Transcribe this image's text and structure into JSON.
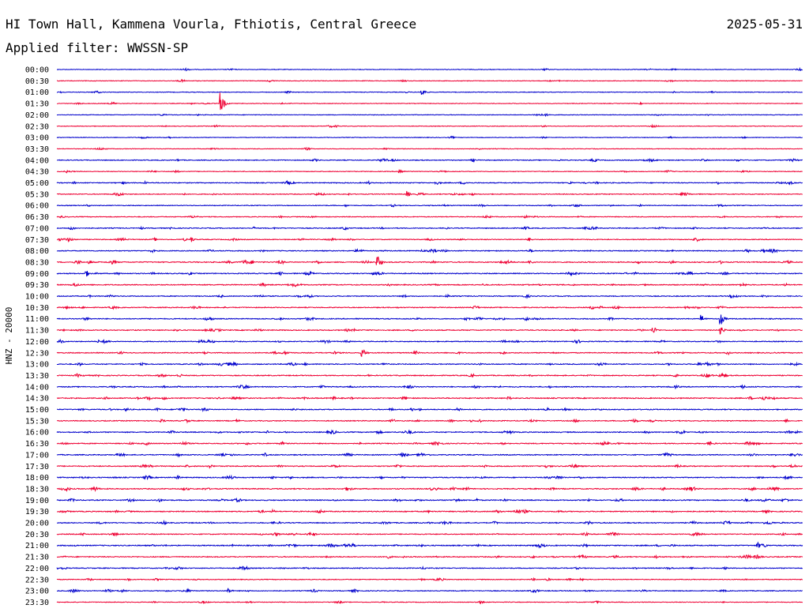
{
  "chart_data": {
    "type": "line",
    "title": "HI Town Hall, Kammena Vourla, Fthiotis, Central Greece",
    "date": "2025-05-31",
    "subtitle": "Applied filter: WWSSN-SP",
    "ylabel": "HNZ - 20000",
    "row_labels": [
      "00:00",
      "00:30",
      "01:00",
      "01:30",
      "02:00",
      "02:30",
      "03:00",
      "03:30",
      "04:00",
      "04:30",
      "05:00",
      "05:30",
      "06:00",
      "06:30",
      "07:00",
      "07:30",
      "08:00",
      "08:30",
      "09:00",
      "09:30",
      "10:00",
      "10:30",
      "11:00",
      "11:30",
      "12:00",
      "12:30",
      "13:00",
      "13:30",
      "14:00",
      "14:30",
      "15:00",
      "15:30",
      "16:00",
      "16:30",
      "17:00",
      "17:30",
      "18:00",
      "18:30",
      "19:00",
      "19:30",
      "20:00",
      "20:30",
      "21:00",
      "21:30",
      "22:00",
      "22:30",
      "23:00",
      "23:30"
    ],
    "colors": [
      "#0000cc",
      "#ee0033"
    ],
    "noise_level": [
      0.3,
      0.3,
      0.3,
      0.3,
      0.3,
      0.3,
      0.3,
      0.3,
      0.6,
      0.4,
      0.7,
      0.6,
      0.5,
      0.5,
      0.7,
      0.6,
      0.7,
      0.9,
      0.8,
      0.8,
      0.7,
      0.7,
      0.7,
      0.8,
      0.7,
      0.7,
      0.8,
      0.8,
      0.8,
      0.9,
      0.8,
      0.7,
      0.8,
      0.8,
      0.8,
      0.8,
      0.8,
      0.9,
      0.8,
      0.9,
      0.8,
      0.7,
      0.9,
      0.8,
      0.7,
      0.5,
      0.6,
      0.4
    ],
    "events": [
      {
        "row": 3,
        "t": 0.22,
        "amp": 14
      },
      {
        "row": 2,
        "t": 0.49,
        "amp": 5
      },
      {
        "row": 17,
        "t": 0.43,
        "amp": 9
      },
      {
        "row": 22,
        "t": 0.89,
        "amp": 8
      },
      {
        "row": 22,
        "t": 0.865,
        "amp": 5
      },
      {
        "row": 23,
        "t": 0.89,
        "amp": 6
      },
      {
        "row": 23,
        "t": 0.8,
        "amp": 5
      },
      {
        "row": 25,
        "t": 0.41,
        "amp": 6
      },
      {
        "row": 9,
        "t": 0.46,
        "amp": 4
      },
      {
        "row": 18,
        "t": 0.04,
        "amp": 4
      },
      {
        "row": 11,
        "t": 0.47,
        "amp": 4
      },
      {
        "row": 15,
        "t": 0.18,
        "amp": 4
      },
      {
        "row": 42,
        "t": 0.94,
        "amp": 4
      },
      {
        "row": 46,
        "t": 0.23,
        "amp": 4
      }
    ]
  }
}
